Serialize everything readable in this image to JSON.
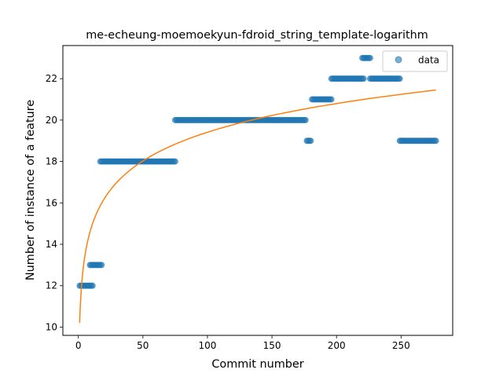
{
  "chart_data": {
    "type": "scatter",
    "title": "me-echeung-moemoekyun-fdroid_string_template-logarithm",
    "xlabel": "Commit number",
    "ylabel": "Number of instance of a feature",
    "xlim": [
      -12,
      290
    ],
    "ylim": [
      9.6,
      23.6
    ],
    "x_ticks": [
      0,
      50,
      100,
      150,
      200,
      250
    ],
    "y_ticks": [
      10,
      12,
      14,
      16,
      18,
      20,
      22
    ],
    "legend": {
      "position": "top-right",
      "entries": [
        "data"
      ]
    },
    "colors": {
      "points": "#1f77b4",
      "fit": "#ff7f0e"
    },
    "series": [
      {
        "name": "data",
        "kind": "scatter",
        "segments": [
          {
            "x_start": 1,
            "x_end": 11,
            "y": 12
          },
          {
            "x_start": 9,
            "x_end": 18,
            "y": 13
          },
          {
            "x_start": 17,
            "x_end": 75,
            "y": 18
          },
          {
            "x_start": 75,
            "x_end": 176,
            "y": 20
          },
          {
            "x_start": 177,
            "x_end": 180,
            "y": 19
          },
          {
            "x_start": 181,
            "x_end": 196,
            "y": 21
          },
          {
            "x_start": 196,
            "x_end": 221,
            "y": 22
          },
          {
            "x_start": 220,
            "x_end": 226,
            "y": 23
          },
          {
            "x_start": 226,
            "x_end": 249,
            "y": 22
          },
          {
            "x_start": 249,
            "x_end": 277,
            "y": 19
          }
        ]
      },
      {
        "kind": "line",
        "curve": "logarithmic",
        "x_range": [
          1,
          277
        ],
        "y_at_x_start": 10.2,
        "y_at_x_end": 21.45
      }
    ]
  }
}
